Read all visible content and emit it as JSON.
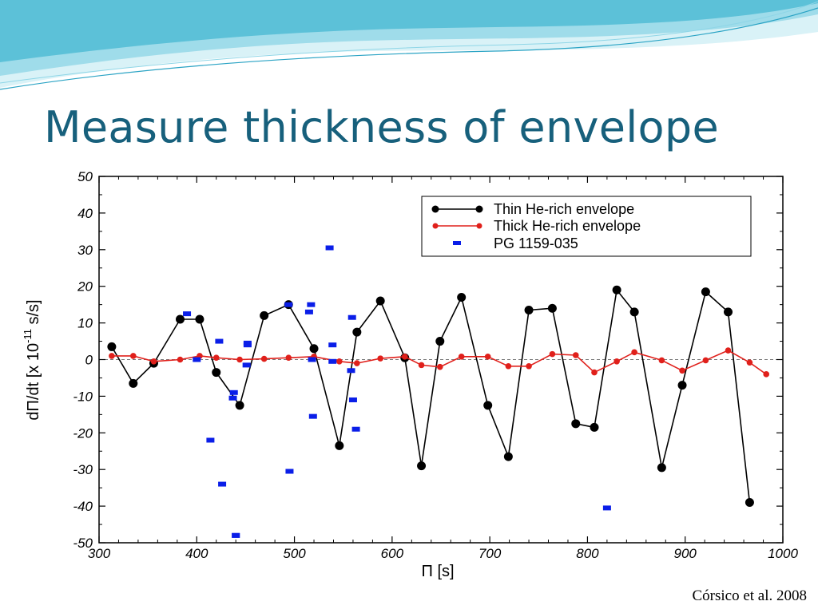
{
  "slide": {
    "title": "Measure thickness of envelope",
    "citation": "Córsico et al. 2008",
    "colors": {
      "title": "#17607c",
      "wave_light": "#bfe9f2",
      "wave_mid": "#7fd0e3",
      "wave_dark": "#3ab3cf"
    }
  },
  "chart_data": {
    "type": "scatter",
    "title": "",
    "xlabel": "Π [s]",
    "ylabel": "dΠ/dt [x 10^-11 s/s]",
    "ylabel_parts": {
      "main": "dΠ/dt [x 10",
      "exp": "-11",
      "unit": " s/s]"
    },
    "xlim": [
      300,
      1000
    ],
    "ylim": [
      -50,
      50
    ],
    "xticks": [
      300,
      400,
      500,
      600,
      700,
      800,
      900,
      1000
    ],
    "yticks": [
      -50,
      -40,
      -30,
      -20,
      -10,
      0,
      10,
      20,
      30,
      40,
      50
    ],
    "zero_line": "dashed",
    "grid": false,
    "legend_position": "top-right",
    "series": [
      {
        "name": "Thin He-rich envelope",
        "style": "line-markers",
        "color": "#000000",
        "x": [
          313,
          335,
          356,
          383,
          403,
          420,
          444,
          469,
          494,
          520,
          546,
          564,
          588,
          613,
          630,
          649,
          671,
          698,
          719,
          740,
          764,
          788,
          807,
          830,
          848,
          876,
          897,
          921,
          944,
          966
        ],
        "y": [
          3.5,
          -6.5,
          -1,
          11,
          11,
          -3.5,
          -12.5,
          12,
          15,
          3,
          -23.5,
          7.5,
          16,
          0.5,
          -29,
          5,
          17,
          -12.5,
          -26.5,
          13.5,
          14,
          -17.5,
          -18.5,
          19,
          13,
          -29.5,
          -7,
          18.5,
          13,
          -39
        ]
      },
      {
        "name": "Thick He-rich envelope",
        "style": "line-markers",
        "color": "#e0201b",
        "x": [
          313,
          335,
          356,
          383,
          403,
          420,
          444,
          469,
          494,
          520,
          546,
          564,
          588,
          613,
          630,
          649,
          671,
          698,
          719,
          740,
          764,
          788,
          807,
          830,
          848,
          876,
          897,
          921,
          944,
          966,
          983
        ],
        "y": [
          1,
          1,
          -0.5,
          0,
          1,
          0.5,
          0,
          0.2,
          0.5,
          0.8,
          -0.5,
          -1,
          0.3,
          0.8,
          -1.5,
          -2,
          0.8,
          0.8,
          -1.8,
          -1.8,
          1.5,
          1.2,
          -3.5,
          -0.5,
          2,
          -0.2,
          -3,
          -0.2,
          2.5,
          -0.8,
          -4
        ]
      },
      {
        "name": "PG 1159-035",
        "style": "markers",
        "color": "#0a1ee8",
        "x": [
          390,
          400,
          414,
          423,
          426,
          437,
          438,
          440,
          452,
          451,
          452,
          494,
          495,
          515,
          517,
          518,
          519,
          536,
          539,
          539,
          558,
          560,
          559,
          563,
          820,
          440
        ],
        "y": [
          12.5,
          0,
          -22,
          5,
          -34,
          -10.5,
          -9,
          -48,
          4.5,
          -1.5,
          4,
          15,
          -30.5,
          13,
          15,
          0,
          -15.5,
          30.5,
          -0.5,
          4,
          -3,
          -11,
          11.5,
          -19,
          -40.5,
          -48
        ]
      }
    ]
  }
}
